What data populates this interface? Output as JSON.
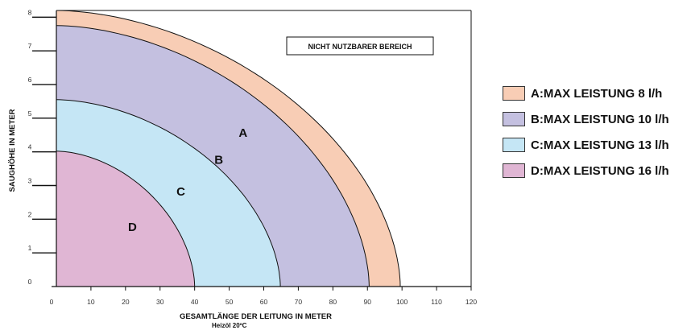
{
  "chart_data": {
    "type": "area",
    "xlabel": "GESAMTLÄNGE DER LEITUNG IN METER",
    "xlabel_sub": "Heizöl 20ºC",
    "ylabel": "SAUGHÖHE IN METER",
    "xlim": [
      0,
      120
    ],
    "ylim": [
      0,
      8.2
    ],
    "xticks": [
      "0",
      "10",
      "20",
      "30",
      "40",
      "50",
      "60",
      "70",
      "80",
      "90",
      "100",
      "110",
      "120"
    ],
    "yticks": [
      "0",
      "1",
      "2",
      "3",
      "4",
      "5",
      "6",
      "7",
      "8"
    ],
    "grid": false,
    "annotation": "NICHT NUTZBARER BEREICH",
    "legend_position": "right",
    "series": [
      {
        "id": "A",
        "name": "A:MAX LEISTUNG 8 l/h",
        "color": "#f8cdb5",
        "y_intercept": 8.2,
        "x_intercept": 99.5,
        "label_at": [
          54,
          4.45
        ]
      },
      {
        "id": "B",
        "name": "B:MAX LEISTUNG 10 l/h",
        "color": "#c4c0e0",
        "y_intercept": 7.75,
        "x_intercept": 90.5,
        "label_at": [
          47,
          3.65
        ]
      },
      {
        "id": "C",
        "name": "C:MAX LEISTUNG 13 l/h",
        "color": "#c5e6f5",
        "y_intercept": 5.55,
        "x_intercept": 64.8,
        "label_at": [
          36,
          2.7
        ]
      },
      {
        "id": "D",
        "name": "D:MAX LEISTUNG 16 l/h",
        "color": "#e0b6d4",
        "y_intercept": 4.02,
        "x_intercept": 40,
        "label_at": [
          22,
          1.65
        ]
      }
    ]
  }
}
